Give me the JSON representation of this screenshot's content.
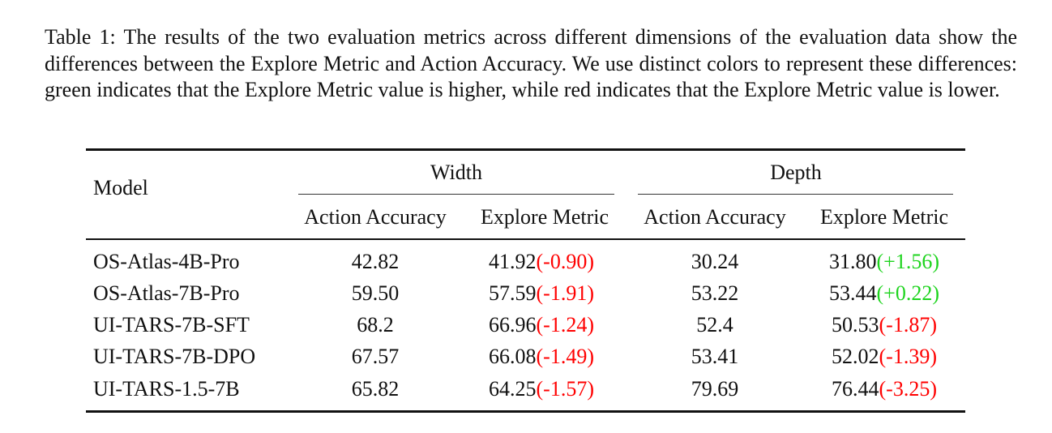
{
  "caption": "Table 1: The results of the two evaluation metrics across different dimensions of the evaluation data show the differences between the Explore Metric and Action Accuracy. We use distinct colors to represent these differences: green indicates that the Explore Metric value is higher, while red indicates that the Explore Metric value is lower.",
  "table": {
    "header": {
      "model": "Model",
      "groups": [
        "Width",
        "Depth"
      ],
      "subcolumns": [
        "Action Accuracy",
        "Explore Metric",
        "Action Accuracy",
        "Explore Metric"
      ]
    },
    "rows": [
      {
        "model": "OS-Atlas-4B-Pro",
        "width_acc": "42.82",
        "width_explore": "41.92",
        "width_delta": "(-0.90)",
        "depth_acc": "30.24",
        "depth_explore": "31.80",
        "depth_delta": "(+1.56)"
      },
      {
        "model": "OS-Atlas-7B-Pro",
        "width_acc": "59.50",
        "width_explore": "57.59",
        "width_delta": "(-1.91)",
        "depth_acc": "53.22",
        "depth_explore": "53.44",
        "depth_delta": "(+0.22)"
      },
      {
        "model": "UI-TARS-7B-SFT",
        "width_acc": "68.2",
        "width_explore": "66.96",
        "width_delta": "(-1.24)",
        "depth_acc": "52.4",
        "depth_explore": "50.53",
        "depth_delta": "(-1.87)"
      },
      {
        "model": "UI-TARS-7B-DPO",
        "width_acc": "67.57",
        "width_explore": "66.08",
        "width_delta": "(-1.49)",
        "depth_acc": "53.41",
        "depth_explore": "52.02",
        "depth_delta": "(-1.39)"
      },
      {
        "model": "UI-TARS-1.5-7B",
        "width_acc": "65.82",
        "width_explore": "64.25",
        "width_delta": "(-1.57)",
        "depth_acc": "79.69",
        "depth_explore": "76.44",
        "depth_delta": "(-3.25)"
      }
    ]
  },
  "colors": {
    "higher": "#1ed41e",
    "lower": "#ff0000"
  }
}
